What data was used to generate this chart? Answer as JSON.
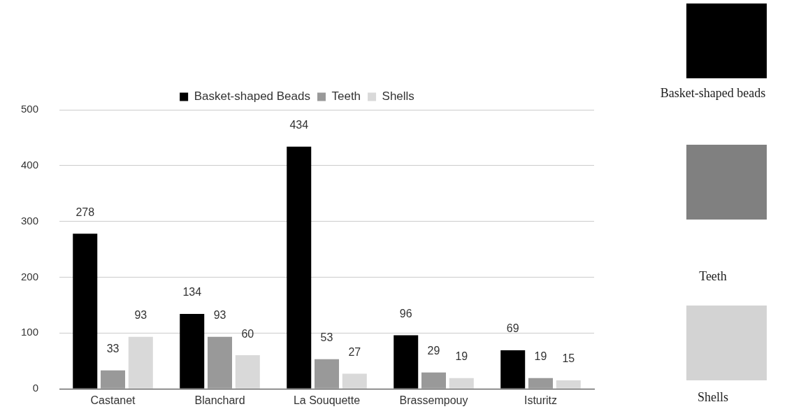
{
  "chart_data": [
    {
      "type": "bar",
      "categories": [
        "Castanet",
        "Blanchard",
        "La Souquette",
        "Brassempouy",
        "Isturitz"
      ],
      "series": [
        {
          "name": "Basket-shaped Beads",
          "color": "#000000",
          "values": [
            278,
            134,
            434,
            96,
            69
          ]
        },
        {
          "name": "Teeth",
          "color": "#999999",
          "values": [
            33,
            93,
            53,
            29,
            19
          ]
        },
        {
          "name": "Shells",
          "color": "#d9d9d9",
          "values": [
            93,
            60,
            27,
            19,
            15
          ]
        }
      ],
      "ylim": [
        0,
        500
      ],
      "yticks": [
        0,
        100,
        200,
        300,
        400,
        500
      ],
      "grid": "y",
      "legend": "top",
      "data_labels": true
    },
    {
      "type": "other",
      "annotations": [
        "Basket-shaped beads",
        "Teeth",
        "Shells"
      ],
      "colors": [
        "#000000",
        "#808080",
        "#d3d3d3"
      ]
    }
  ]
}
